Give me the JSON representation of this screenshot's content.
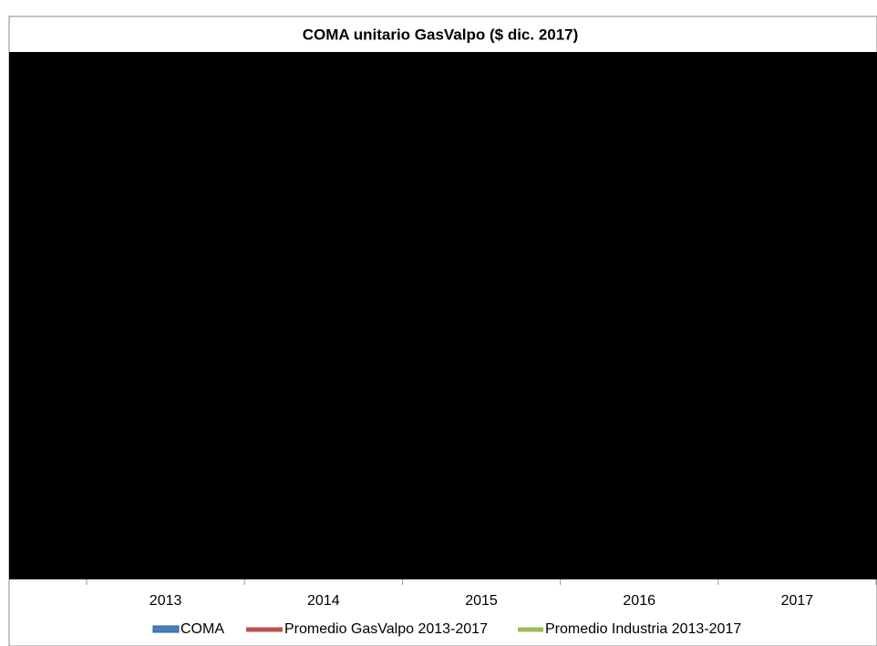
{
  "chart_data": {
    "type": "bar",
    "title": "COMA unitario GasValpo ($ dic. 2017)",
    "categories": [
      "2013",
      "2014",
      "2015",
      "2016",
      "2017"
    ],
    "series": [
      {
        "name": "COMA",
        "color": "#4a7ebb"
      },
      {
        "name": "Promedio GasValpo 2013-2017",
        "color": "#c0504d"
      },
      {
        "name": "Promedio Industria 2013-2017",
        "color": "#9bbb59"
      }
    ]
  }
}
